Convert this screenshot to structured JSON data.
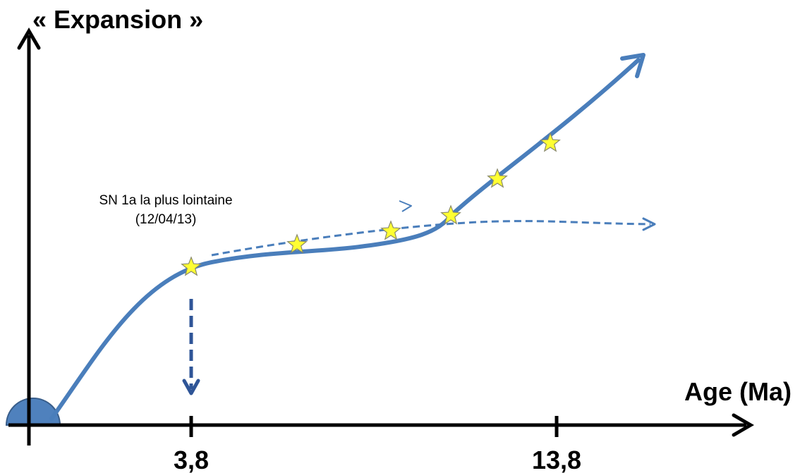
{
  "y_axis_title": "« Expansion »",
  "x_axis_title": "Age (Ma)",
  "ticks": [
    "3,8",
    "13,8"
  ],
  "annotation": {
    "line1": "SN 1a la plus lointaine",
    "line2": "(12/04/13)"
  },
  "colors": {
    "axis": "#000000",
    "curve": "#4a7ebb",
    "dashed_curve": "#4a7ebb",
    "down_arrow": "#2f5597",
    "star_fill": "#ffff33",
    "star_stroke": "#8a8a6a",
    "origin_fill": "#4f81bd",
    "origin_stroke": "#385d8a"
  },
  "icons": [
    "star-icon",
    "arrow-head-icon",
    "origin-semicircle-icon"
  ]
}
